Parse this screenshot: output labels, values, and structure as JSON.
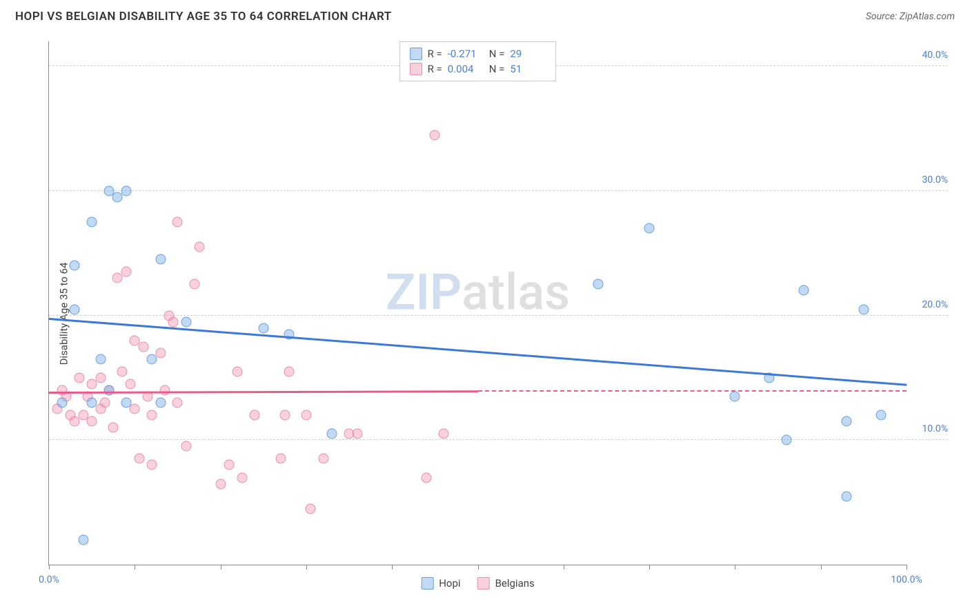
{
  "header": {
    "title": "HOPI VS BELGIAN DISABILITY AGE 35 TO 64 CORRELATION CHART",
    "source_label": "Source: ZipAtlas.com"
  },
  "chart": {
    "type": "scatter",
    "ylabel": "Disability Age 35 to 64",
    "xlim": [
      0,
      100
    ],
    "ylim": [
      0,
      42
    ],
    "xtick_positions": [
      0,
      10,
      20,
      30,
      40,
      50,
      60,
      70,
      80,
      90,
      100
    ],
    "xtick_labels": {
      "0": "0.0%",
      "100": "100.0%"
    },
    "ytick_positions": [
      10,
      20,
      30,
      40
    ],
    "ytick_labels": {
      "10": "10.0%",
      "20": "20.0%",
      "30": "30.0%",
      "40": "40.0%"
    },
    "grid_color": "#d0d0d0",
    "axis_color": "#888888",
    "background_color": "#ffffff",
    "label_color_axis": "#4a7fd6",
    "watermark": {
      "z": "ZIP",
      "rest": "atlas"
    },
    "series": {
      "hopi": {
        "label": "Hopi",
        "fill_color": "rgba(120,170,230,0.45)",
        "stroke_color": "#6aa0de",
        "points": [
          [
            1.5,
            13.0
          ],
          [
            4,
            2.0
          ],
          [
            3,
            20.5
          ],
          [
            3,
            24.0
          ],
          [
            5,
            27.5
          ],
          [
            6,
            16.5
          ],
          [
            7,
            30.0
          ],
          [
            8,
            29.5
          ],
          [
            9,
            30.0
          ],
          [
            5,
            13.0
          ],
          [
            7,
            14.0
          ],
          [
            9,
            13.0
          ],
          [
            12,
            16.5
          ],
          [
            13,
            24.5
          ],
          [
            13,
            13.0
          ],
          [
            16,
            19.5
          ],
          [
            25,
            19.0
          ],
          [
            28,
            18.5
          ],
          [
            33,
            10.5
          ],
          [
            70,
            27.0
          ],
          [
            64,
            22.5
          ],
          [
            80,
            13.5
          ],
          [
            84,
            15.0
          ],
          [
            88,
            22.0
          ],
          [
            86,
            10.0
          ],
          [
            93,
            5.5
          ],
          [
            93,
            11.5
          ],
          [
            95,
            20.5
          ],
          [
            97,
            12.0
          ]
        ],
        "trend": {
          "color": "#3b78d8",
          "x1": 0,
          "y1": 19.8,
          "x2": 100,
          "y2": 14.5
        }
      },
      "belgians": {
        "label": "Belgians",
        "fill_color": "rgba(240,140,170,0.4)",
        "stroke_color": "#e78fb0",
        "points": [
          [
            1,
            12.5
          ],
          [
            1.5,
            14.0
          ],
          [
            2,
            13.5
          ],
          [
            2.5,
            12.0
          ],
          [
            3,
            11.5
          ],
          [
            3.5,
            15.0
          ],
          [
            4,
            12.0
          ],
          [
            4.5,
            13.5
          ],
          [
            5,
            11.5
          ],
          [
            5,
            14.5
          ],
          [
            6,
            12.5
          ],
          [
            6,
            15.0
          ],
          [
            6.5,
            13.0
          ],
          [
            7,
            14.0
          ],
          [
            7.5,
            11.0
          ],
          [
            8,
            23.0
          ],
          [
            8.5,
            15.5
          ],
          [
            9,
            23.5
          ],
          [
            9.5,
            14.5
          ],
          [
            10,
            12.5
          ],
          [
            10,
            18.0
          ],
          [
            10.5,
            8.5
          ],
          [
            11,
            17.5
          ],
          [
            11.5,
            13.5
          ],
          [
            12,
            12.0
          ],
          [
            12,
            8.0
          ],
          [
            13,
            17.0
          ],
          [
            13.5,
            14.0
          ],
          [
            14,
            20.0
          ],
          [
            14.5,
            19.5
          ],
          [
            15,
            27.5
          ],
          [
            15,
            13.0
          ],
          [
            16,
            9.5
          ],
          [
            17,
            22.5
          ],
          [
            17.5,
            25.5
          ],
          [
            20,
            6.5
          ],
          [
            21,
            8.0
          ],
          [
            22,
            15.5
          ],
          [
            22.5,
            7.0
          ],
          [
            24,
            12.0
          ],
          [
            27,
            8.5
          ],
          [
            27.5,
            12.0
          ],
          [
            28,
            15.5
          ],
          [
            30,
            12.0
          ],
          [
            30.5,
            4.5
          ],
          [
            32,
            8.5
          ],
          [
            35,
            10.5
          ],
          [
            36,
            10.5
          ],
          [
            44,
            7.0
          ],
          [
            45,
            34.5
          ],
          [
            46,
            10.5
          ]
        ],
        "trend": {
          "color": "#e85a8a",
          "x1": 0,
          "y1": 13.9,
          "x2": 50,
          "y2": 14.0,
          "dash_to": 100
        }
      }
    },
    "legend_top": {
      "rows": [
        {
          "swatch_fill": "rgba(120,170,230,0.45)",
          "swatch_stroke": "#6aa0de",
          "r_label": "R =",
          "r": "-0.271",
          "n_label": "N =",
          "n": "29"
        },
        {
          "swatch_fill": "rgba(240,140,170,0.4)",
          "swatch_stroke": "#e78fb0",
          "r_label": "R =",
          "r": "0.004",
          "n_label": "N =",
          "n": "51"
        }
      ]
    },
    "legend_bottom": [
      {
        "swatch_fill": "rgba(120,170,230,0.45)",
        "swatch_stroke": "#6aa0de",
        "label": "Hopi"
      },
      {
        "swatch_fill": "rgba(240,140,170,0.4)",
        "swatch_stroke": "#e78fb0",
        "label": "Belgians"
      }
    ]
  }
}
